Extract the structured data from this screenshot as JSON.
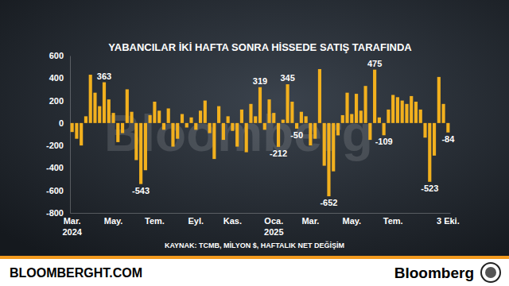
{
  "chart_data": {
    "type": "bar",
    "title": "YABANCILAR İKİ HAFTA SONRA HİSSEDE SATIŞ TARAFINDA",
    "source": "KAYNAK: TCMB, MİLYON $, HAFTALIK NET DEĞİŞİM",
    "annotations": [
      "BLOOMBERGHT.COM",
      "Bloomberg",
      "Bloomberg"
    ],
    "categories": [
      "Mar.\n2024",
      null,
      null,
      null,
      null,
      null,
      null,
      null,
      null,
      "May.",
      null,
      null,
      null,
      null,
      null,
      null,
      null,
      null,
      "Tem.",
      null,
      null,
      null,
      null,
      null,
      null,
      null,
      null,
      "Eyl.",
      null,
      null,
      null,
      null,
      null,
      null,
      null,
      "Kas.",
      null,
      null,
      null,
      null,
      null,
      null,
      null,
      null,
      "Oca.\n2025",
      null,
      null,
      null,
      null,
      null,
      null,
      null,
      "Mar.",
      null,
      null,
      null,
      null,
      null,
      null,
      null,
      null,
      "May.",
      null,
      null,
      null,
      null,
      null,
      null,
      null,
      null,
      "Tem.",
      null,
      null,
      null,
      null,
      null,
      null,
      null,
      null,
      null,
      null,
      null,
      "3 Eki."
    ],
    "values": [
      -80,
      -140,
      -200,
      60,
      430,
      270,
      150,
      363,
      210,
      90,
      -170,
      -90,
      300,
      100,
      -330,
      -543,
      -420,
      70,
      190,
      110,
      -60,
      130,
      -210,
      -140,
      80,
      -40,
      50,
      -60,
      110,
      200,
      -90,
      -320,
      150,
      -150,
      60,
      -70,
      -210,
      120,
      -260,
      170,
      60,
      319,
      -60,
      210,
      90,
      -212,
      30,
      345,
      190,
      -50,
      100,
      60,
      -200,
      -140,
      480,
      -380,
      -652,
      -430,
      -110,
      70,
      270,
      80,
      260,
      110,
      330,
      -150,
      475,
      50,
      -109,
      120,
      250,
      230,
      200,
      170,
      240,
      190,
      120,
      -130,
      -523,
      -290,
      410,
      170,
      -84
    ],
    "value_labels": [
      null,
      null,
      null,
      null,
      null,
      null,
      null,
      "363",
      null,
      null,
      null,
      null,
      null,
      null,
      null,
      "-543",
      null,
      null,
      null,
      null,
      null,
      null,
      null,
      null,
      null,
      null,
      null,
      null,
      null,
      null,
      null,
      null,
      null,
      null,
      null,
      null,
      null,
      null,
      null,
      null,
      null,
      "319",
      null,
      null,
      null,
      "-212",
      null,
      "345",
      null,
      "-50",
      null,
      null,
      null,
      null,
      null,
      null,
      "-652",
      null,
      null,
      null,
      null,
      null,
      null,
      null,
      null,
      null,
      "475",
      null,
      "-109",
      null,
      null,
      null,
      null,
      null,
      null,
      null,
      null,
      null,
      "-523",
      null,
      null,
      null,
      "-84"
    ],
    "data_labels": true,
    "color": "#f2b01e",
    "ylim": [
      -800,
      600
    ],
    "yticks": [
      -800,
      -600,
      -400,
      -200,
      0,
      200,
      400,
      600
    ],
    "grid": false
  }
}
